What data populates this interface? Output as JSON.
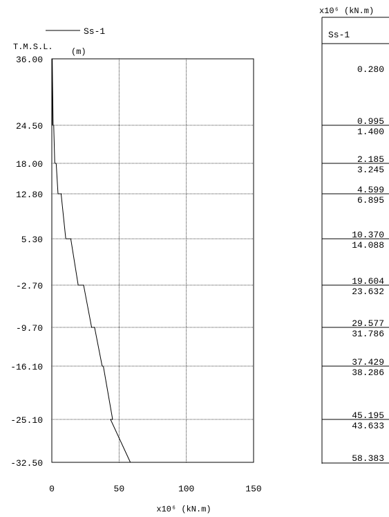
{
  "chart_data": {
    "type": "line",
    "title": "",
    "legend": {
      "label": "Ss-1",
      "placement": "top-left"
    },
    "y_axis": {
      "label": "T.M.S.L.",
      "unit": "(m)"
    },
    "x_axis": {
      "label": "x10⁶ (kN.m)",
      "xlim": [
        0,
        150
      ],
      "ticks": [
        "0",
        "50",
        "100",
        "150"
      ]
    },
    "elevation_labels": [
      "36.00",
      "24.50",
      "18.00",
      "12.80",
      "5.30",
      "-2.70",
      "-9.70",
      "-16.10",
      "-25.10",
      "-32.50"
    ],
    "levels": [
      36.0,
      24.5,
      18.0,
      12.8,
      5.3,
      -2.7,
      -9.7,
      -16.1,
      -25.1,
      -32.5
    ],
    "grid": true,
    "series": [
      {
        "name": "Ss-1",
        "segments": [
          {
            "top": 36.0,
            "bottom": 24.5,
            "values": [
              "0.280",
              "0.995"
            ]
          },
          {
            "top": 24.5,
            "bottom": 18.0,
            "values": [
              "1.400",
              "2.185"
            ]
          },
          {
            "top": 18.0,
            "bottom": 12.8,
            "values": [
              "3.245",
              "4.599"
            ]
          },
          {
            "top": 12.8,
            "bottom": 5.3,
            "values": [
              "6.895",
              "10.370"
            ]
          },
          {
            "top": 5.3,
            "bottom": -2.7,
            "values": [
              "14.088",
              "19.604"
            ]
          },
          {
            "top": -2.7,
            "bottom": -9.7,
            "values": [
              "23.632",
              "29.577"
            ]
          },
          {
            "top": -9.7,
            "bottom": -16.1,
            "values": [
              "31.786",
              "37.429"
            ]
          },
          {
            "top": -16.1,
            "bottom": -25.1,
            "values": [
              "38.286",
              "45.195"
            ]
          },
          {
            "top": -25.1,
            "bottom": -32.5,
            "values": [
              "43.633",
              "58.383"
            ]
          }
        ]
      }
    ],
    "table": {
      "unit_label": "x10⁶ (kN.m)",
      "header": "Ss-1",
      "first_value": "0.280"
    }
  }
}
